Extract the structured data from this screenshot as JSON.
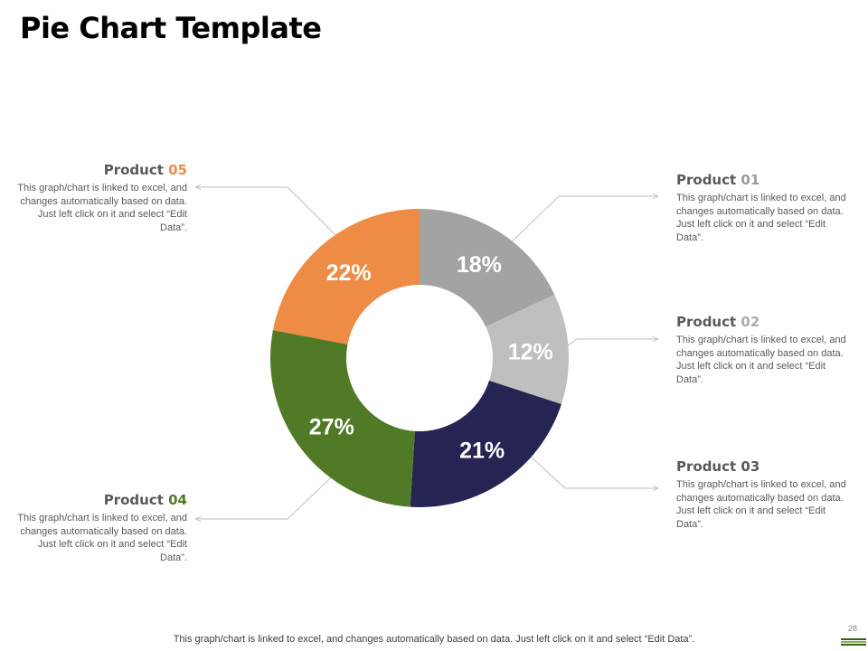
{
  "title": "Pie Chart Template",
  "callouts": [
    {
      "prefix": "Product ",
      "num": "05",
      "color": "#ee8c46",
      "text": "This graph/chart is linked to excel, and changes automatically based on data. Just left click on it and select “Edit Data”."
    },
    {
      "prefix": "Product ",
      "num": "01",
      "color": "#9b9b9b",
      "text": "This graph/chart is linked to excel, and changes automatically based on data. Just left click on it and select “Edit Data”."
    },
    {
      "prefix": "Product ",
      "num": "02",
      "color": "#adadad",
      "text": "This graph/chart is linked to excel, and changes automatically based on data. Just left click on it and select “Edit Data”."
    },
    {
      "prefix": "Product ",
      "num": "03",
      "color": "#595959",
      "text": "This graph/chart is linked to excel, and changes automatically based on data. Just left click on it and select “Edit Data”."
    },
    {
      "prefix": "Product ",
      "num": "04",
      "color": "#4f7b26",
      "text": "This graph/chart is linked to excel, and changes automatically based on data. Just left click on it and select “Edit Data”."
    }
  ],
  "chart_data": {
    "type": "pie",
    "donut": true,
    "slices": [
      {
        "label": "Product 01",
        "value": 18,
        "display": "18%",
        "color": "#a3a3a3"
      },
      {
        "label": "Product 02",
        "value": 12,
        "display": "12%",
        "color": "#bfbfbf"
      },
      {
        "label": "Product 03",
        "value": 21,
        "display": "21%",
        "color": "#262452"
      },
      {
        "label": "Product 04",
        "value": 27,
        "display": "27%",
        "color": "#507a26"
      },
      {
        "label": "Product 05",
        "value": 22,
        "display": "22%",
        "color": "#ee8c46"
      }
    ],
    "start_angle_deg": 0,
    "direction": "clockwise"
  },
  "footer_text": "This graph/chart is linked to excel,  and changes automatically based on data. Just left click on it and select “Edit Data”.",
  "page_number": "28",
  "theme_colors": {
    "accent_dark": "#3b5e1e",
    "accent_light": "#8db05a"
  }
}
